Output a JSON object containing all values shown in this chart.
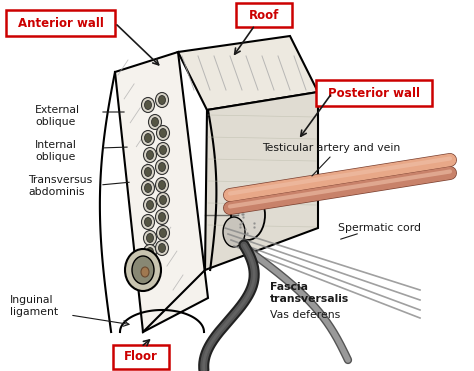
{
  "bg_color": "#ffffff",
  "red_color": "#cc0000",
  "black_color": "#1a1a1a",
  "labels": {
    "anterior_wall": "Anterior wall",
    "roof": "Roof",
    "posterior_wall": "Posterior wall",
    "floor": "Floor",
    "external_oblique": "External\noblique",
    "internal_oblique": "Internal\noblique",
    "transversus": "Transversus\nabdominis",
    "inguinal_ligament": "Inguinal\nligament",
    "testicular": "Testicular artery and vein",
    "spermatic_cord": "Spermatic cord",
    "fascia": "Fascia\ntransversalis",
    "vas_deferens": "Vas deferens"
  },
  "canal_front": {
    "x": [
      115,
      175,
      210,
      145
    ],
    "y": [
      75,
      55,
      295,
      330
    ]
  },
  "canal_roof": {
    "x": [
      175,
      285,
      315,
      205
    ],
    "y": [
      55,
      38,
      95,
      112
    ]
  },
  "canal_post": {
    "x": [
      205,
      315,
      315,
      205
    ],
    "y": [
      112,
      95,
      235,
      270
    ]
  },
  "salmon_light": "#e8a888",
  "salmon_dark": "#c8826a",
  "gray_tube": "#888888",
  "dark_tube": "#444444"
}
